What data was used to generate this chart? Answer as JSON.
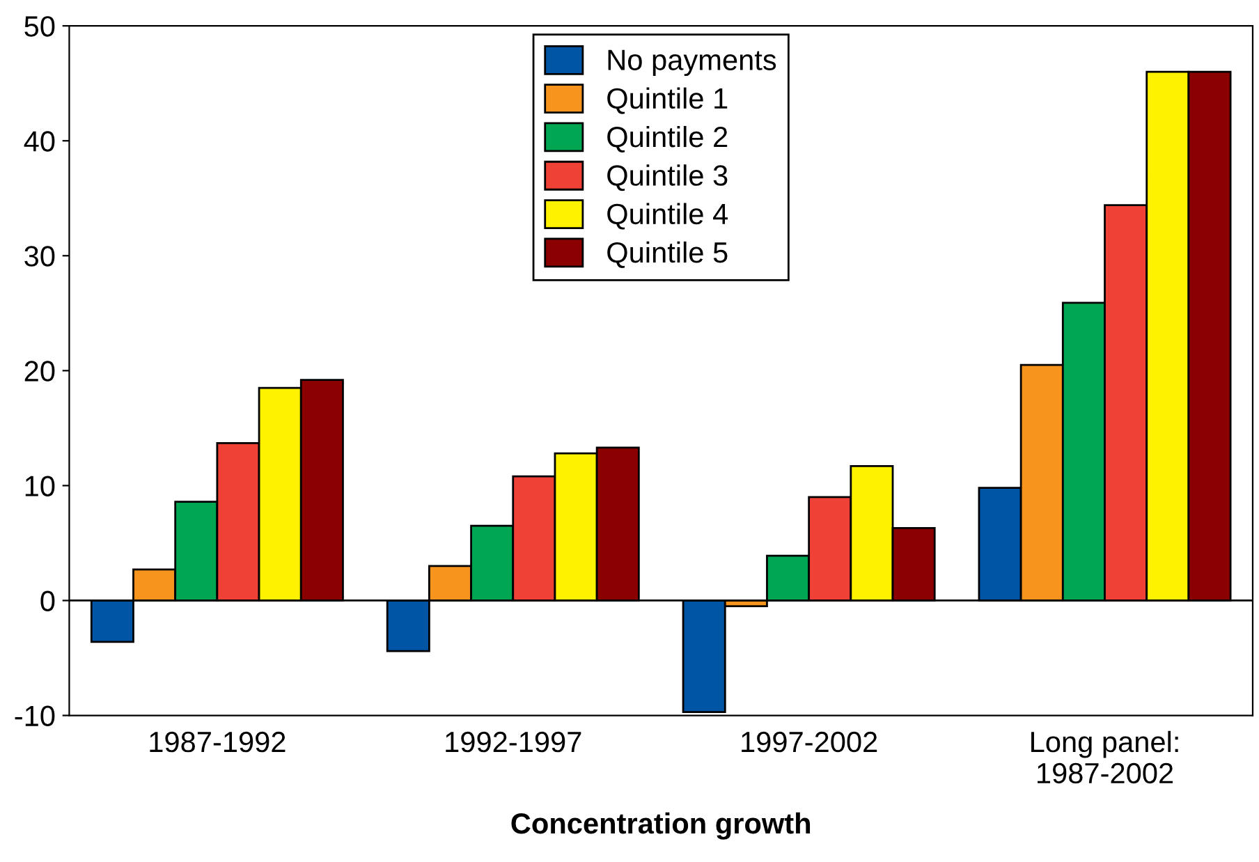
{
  "chart_data": {
    "type": "bar",
    "xlabel": "Concentration growth",
    "categories": [
      "1987-1992",
      "1992-1997",
      "1997-2002",
      "Long panel:\n1987-2002"
    ],
    "series": [
      {
        "name": "No payments",
        "color": "#0055a4",
        "values": [
          -3.6,
          -4.4,
          -9.7,
          9.8
        ]
      },
      {
        "name": "Quintile 1",
        "color": "#f7941d",
        "values": [
          2.7,
          3.0,
          -0.5,
          20.5
        ]
      },
      {
        "name": "Quintile 2",
        "color": "#00a651",
        "values": [
          8.6,
          6.5,
          3.9,
          25.9
        ]
      },
      {
        "name": "Quintile 3",
        "color": "#ef4136",
        "values": [
          13.7,
          10.8,
          9.0,
          34.4
        ]
      },
      {
        "name": "Quintile 4",
        "color": "#fff200",
        "values": [
          18.5,
          12.8,
          11.7,
          46.0
        ]
      },
      {
        "name": "Quintile 5",
        "color": "#8b0000",
        "values": [
          19.2,
          13.3,
          6.3,
          46.0
        ]
      }
    ],
    "ylim": [
      -10,
      50
    ],
    "yticks": [
      -10,
      0,
      10,
      20,
      30,
      40,
      50
    ],
    "ref_lines": [
      {
        "axis": "y",
        "value": 0,
        "color": "#000000"
      }
    ],
    "legend": "top"
  }
}
